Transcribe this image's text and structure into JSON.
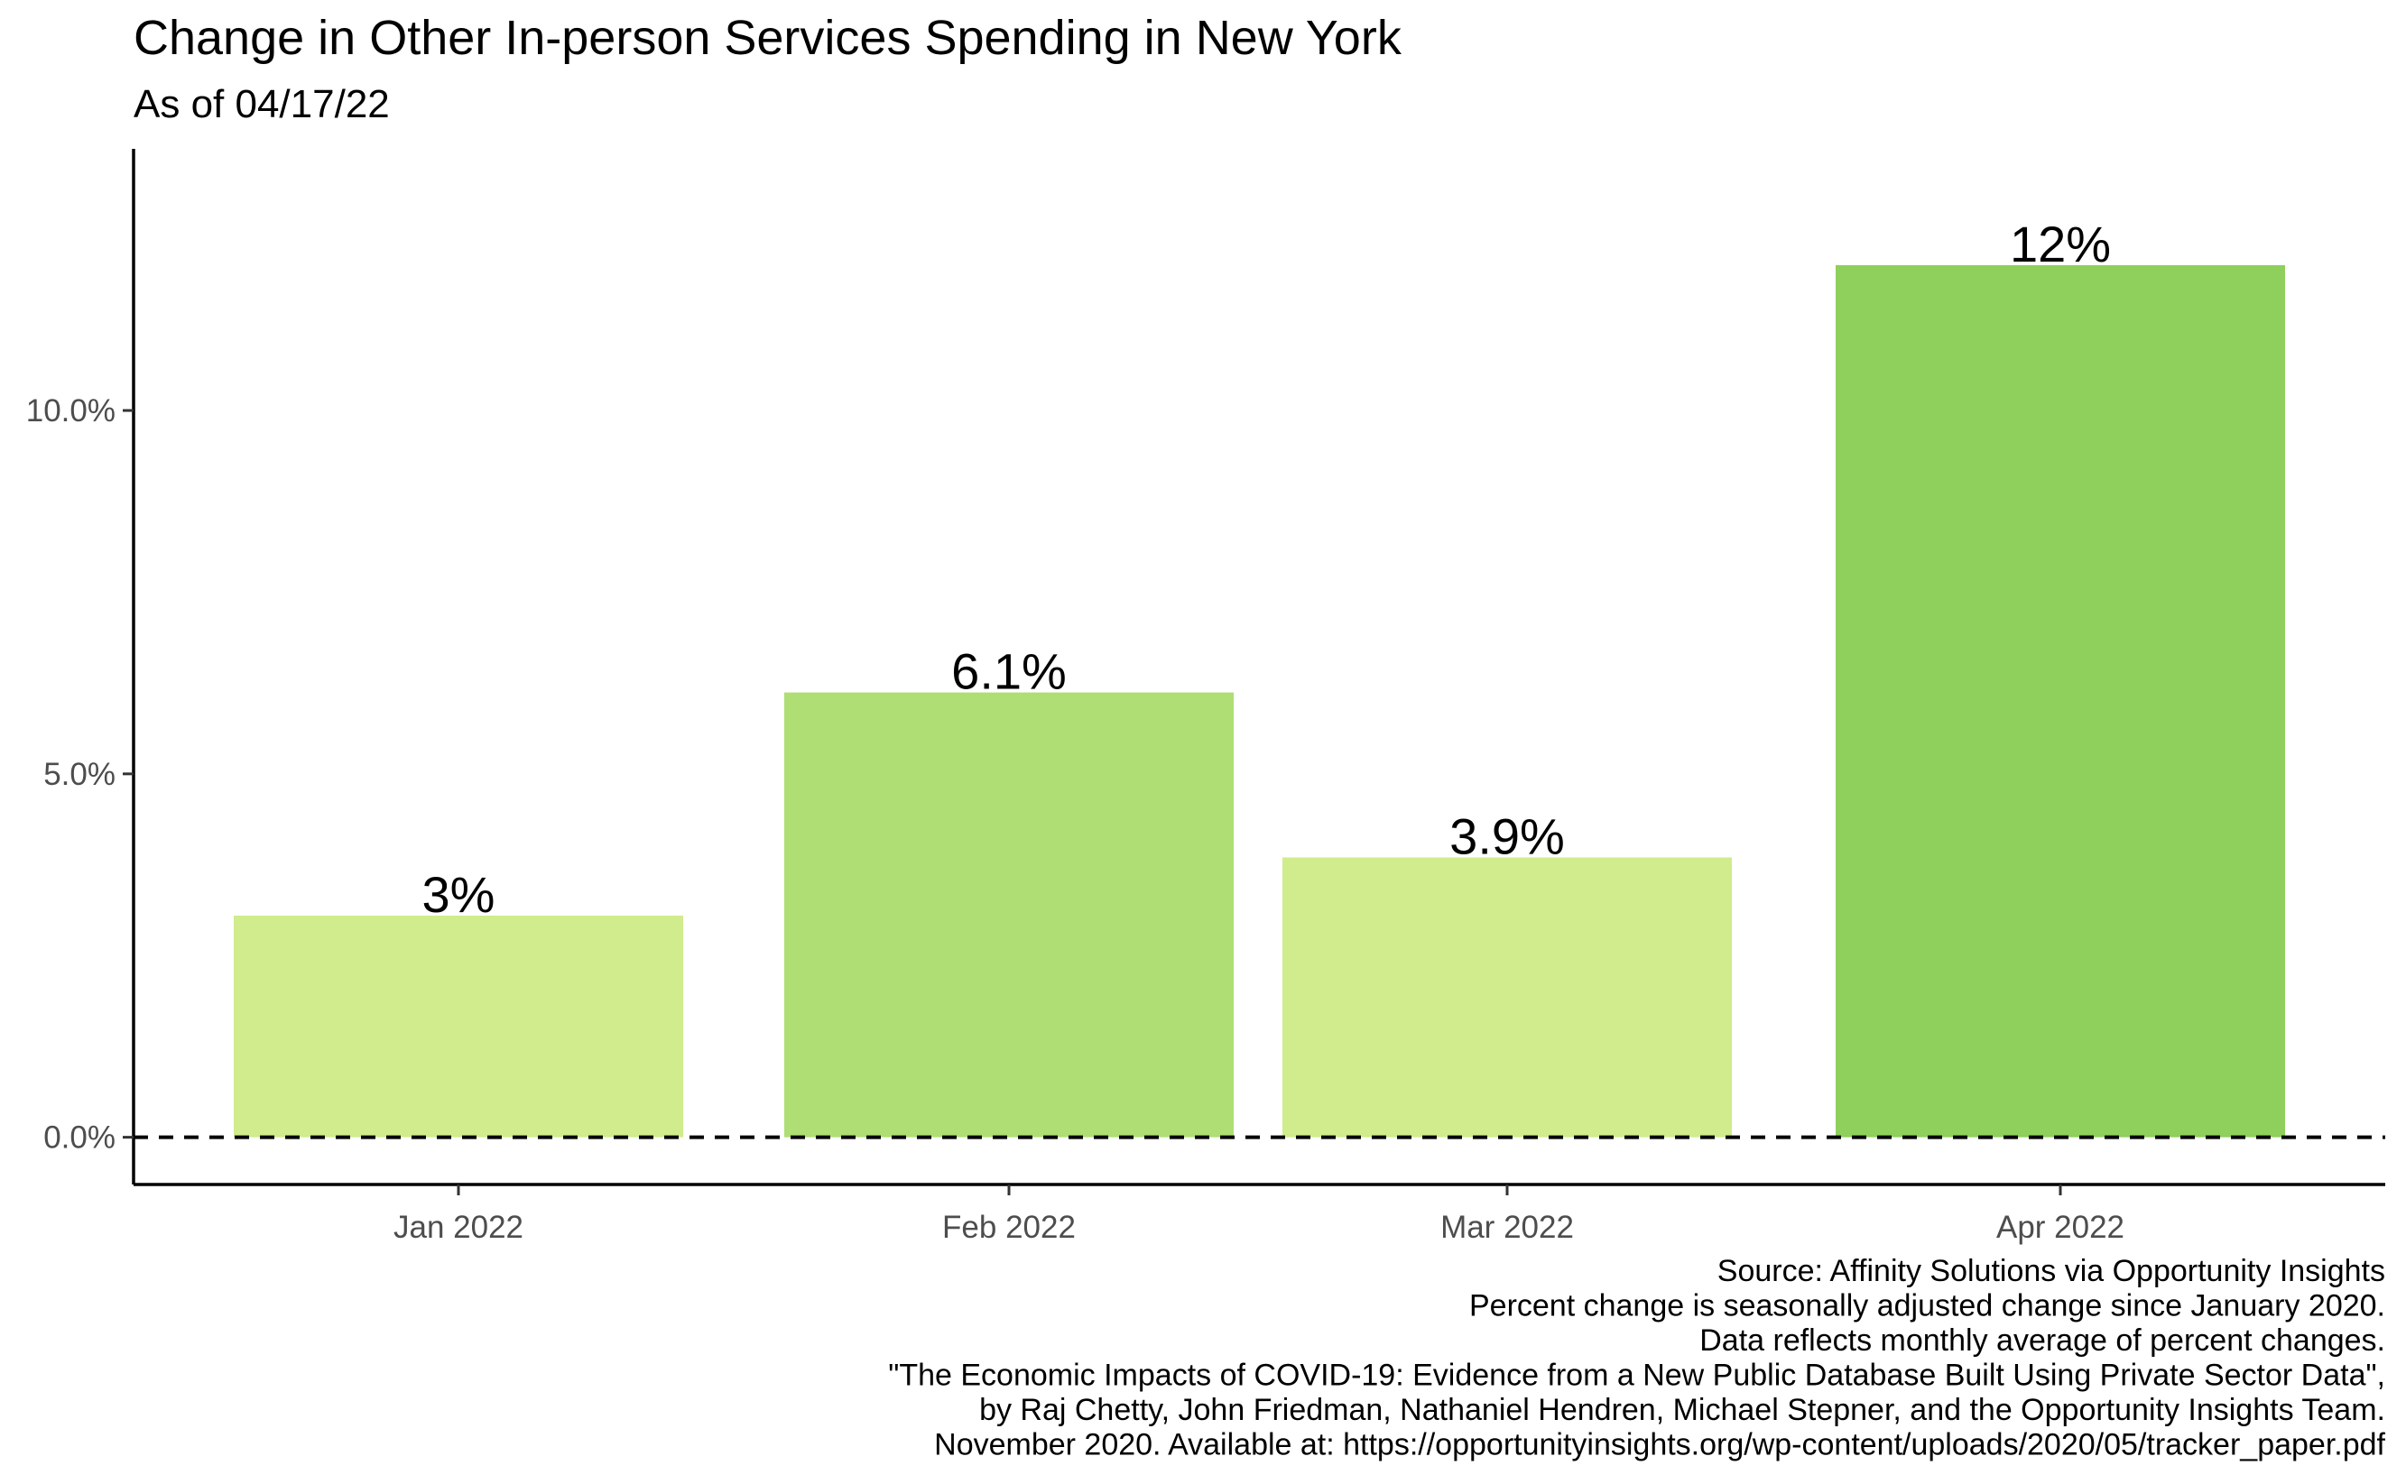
{
  "chart_data": {
    "type": "bar",
    "title": "Change in Other In-person Services Spending in New York",
    "subtitle": "As of 04/17/22",
    "categories": [
      "Jan 2022",
      "Feb 2022",
      "Mar 2022",
      "Apr 2022"
    ],
    "values": [
      3.05,
      6.12,
      3.85,
      12.0
    ],
    "data_labels": [
      "3%",
      "6.1%",
      "3.9%",
      "12%"
    ],
    "bar_colors": [
      "#d0ec8c",
      "#aede74",
      "#d0ec8c",
      "#8fcf5c"
    ],
    "ylim": [
      -0.65,
      13.6
    ],
    "yticks": [
      0,
      5,
      10
    ],
    "ytick_labels": [
      "0.0%",
      "5.0%",
      "10.0%"
    ],
    "xlabel": "",
    "ylabel": "",
    "reference_line": {
      "y": 0,
      "style": "dashed"
    },
    "grid": false,
    "legend": "none",
    "caption_lines": [
      "Source: Affinity Solutions via Opportunity Insights",
      "Percent change is seasonally adjusted change since January 2020.",
      "Data reflects monthly average of percent changes.",
      "\"The Economic Impacts of COVID-19: Evidence from a New Public Database Built Using Private Sector Data\",",
      "by Raj Chetty, John Friedman, Nathaniel Hendren, Michael Stepner, and the Opportunity Insights Team.",
      "November 2020. Available at: https://opportunityinsights.org/wp-content/uploads/2020/05/tracker_paper.pdf"
    ]
  }
}
